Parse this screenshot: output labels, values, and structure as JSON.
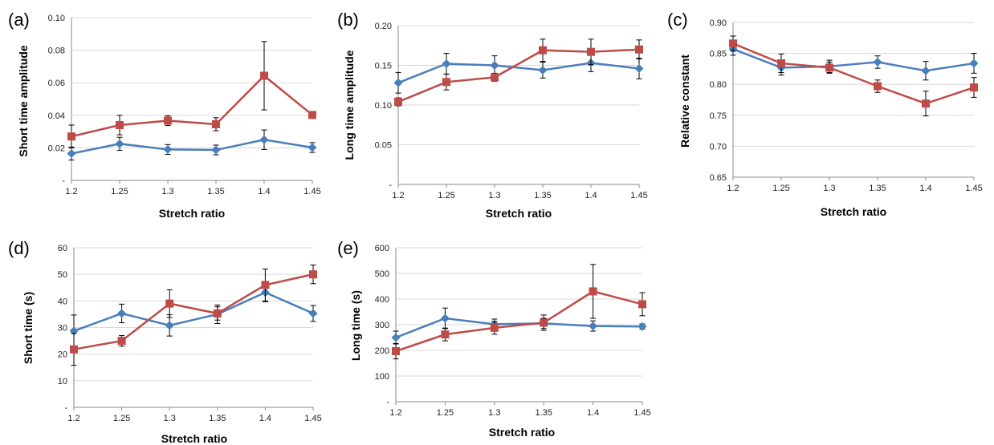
{
  "colors": {
    "blue": "#4a7ebb",
    "red": "#be4b48",
    "grid": "#d9d9d9",
    "axis": "#888888",
    "error": "#000000"
  },
  "chart_data": [
    {
      "type": "line",
      "panel": "(a)",
      "xlabel": "Stretch ratio",
      "ylabel": "Short time amplitude",
      "categories": [
        "1.2",
        "1.25",
        "1.3",
        "1.35",
        "1.4",
        "1.45"
      ],
      "yticks": [
        "-",
        "0.02",
        "0.04",
        "0.06",
        "0.08",
        "0.10"
      ],
      "ylim": [
        0,
        0.1
      ],
      "grid": true,
      "series": [
        {
          "color": "blue",
          "marker": "diamond",
          "values": [
            0.0165,
            0.0225,
            0.019,
            0.0187,
            0.025,
            0.0202
          ],
          "errors": [
            0.004,
            0.004,
            0.003,
            0.003,
            0.006,
            0.003
          ]
        },
        {
          "color": "red",
          "marker": "square",
          "values": [
            0.027,
            0.034,
            0.0367,
            0.0345,
            0.0643,
            0.0402
          ],
          "errors": [
            0.007,
            0.006,
            0.003,
            0.004,
            0.021,
            0.002
          ]
        }
      ]
    },
    {
      "type": "line",
      "panel": "(b)",
      "xlabel": "Stretch ratio",
      "ylabel": "Long time amplitude",
      "categories": [
        "1.2",
        "1.25",
        "1.3",
        "1.35",
        "1.4",
        "1.45"
      ],
      "yticks": [
        "-",
        "0.05",
        "0.10",
        "0.15",
        "0.20"
      ],
      "ylim": [
        0,
        0.2
      ],
      "grid": true,
      "series": [
        {
          "color": "blue",
          "marker": "diamond",
          "values": [
            0.128,
            0.152,
            0.15,
            0.144,
            0.153,
            0.146
          ],
          "errors": [
            0.013,
            0.013,
            0.012,
            0.01,
            0.011,
            0.013
          ]
        },
        {
          "color": "red",
          "marker": "square",
          "values": [
            0.104,
            0.129,
            0.135,
            0.169,
            0.167,
            0.17
          ],
          "errors": [
            0.005,
            0.01,
            0.005,
            0.014,
            0.016,
            0.012
          ]
        }
      ]
    },
    {
      "type": "line",
      "panel": "(c)",
      "xlabel": "Stretch ratio",
      "ylabel": "Relative constant",
      "categories": [
        "1.2",
        "1.25",
        "1.3",
        "1.35",
        "1.4",
        "1.45"
      ],
      "yticks": [
        "0.65",
        "0.70",
        "0.75",
        "0.80",
        "0.85",
        "0.90"
      ],
      "ylim": [
        0.65,
        0.9
      ],
      "grid": true,
      "series": [
        {
          "color": "blue",
          "marker": "diamond",
          "values": [
            0.857,
            0.827,
            0.829,
            0.836,
            0.822,
            0.834
          ],
          "errors": [
            0.01,
            0.012,
            0.01,
            0.01,
            0.015,
            0.016
          ]
        },
        {
          "color": "red",
          "marker": "square",
          "values": [
            0.866,
            0.834,
            0.827,
            0.797,
            0.769,
            0.795
          ],
          "errors": [
            0.012,
            0.015,
            0.009,
            0.01,
            0.02,
            0.016
          ]
        }
      ]
    },
    {
      "type": "line",
      "panel": "(d)",
      "xlabel": "Stretch ratio",
      "ylabel": "Short time (s)",
      "categories": [
        "1.2",
        "1.25",
        "1.3",
        "1.35",
        "1.4",
        "1.45"
      ],
      "yticks": [
        "-",
        "10",
        "20",
        "30",
        "40",
        "50",
        "60"
      ],
      "ylim": [
        0,
        60
      ],
      "grid": true,
      "series": [
        {
          "color": "blue",
          "marker": "diamond",
          "values": [
            28.7,
            35.3,
            30.8,
            35.0,
            43.2,
            35.3
          ],
          "errors": [
            6.0,
            3.5,
            4.0,
            3.5,
            3.5,
            3.0
          ]
        },
        {
          "color": "red",
          "marker": "square",
          "values": [
            21.8,
            25.0,
            39.0,
            35.3,
            46.0,
            50.0
          ],
          "errors": [
            6.0,
            2.0,
            5.2,
            2.5,
            6.0,
            3.5
          ]
        }
      ]
    },
    {
      "type": "line",
      "panel": "(e)",
      "xlabel": "Stretch ratio",
      "ylabel": "Long time (s)",
      "categories": [
        "1.2",
        "1.25",
        "1.3",
        "1.35",
        "1.4",
        "1.45"
      ],
      "yticks": [
        "-",
        "100",
        "200",
        "300",
        "400",
        "500",
        "600"
      ],
      "ylim": [
        0,
        600
      ],
      "grid": true,
      "series": [
        {
          "color": "blue",
          "marker": "diamond",
          "values": [
            250,
            325,
            302,
            305,
            295,
            293
          ],
          "errors": [
            25,
            40,
            20,
            20,
            20,
            10
          ]
        },
        {
          "color": "red",
          "marker": "square",
          "values": [
            197,
            262,
            288,
            308,
            430,
            380
          ],
          "errors": [
            30,
            25,
            25,
            30,
            105,
            45
          ]
        }
      ]
    }
  ]
}
